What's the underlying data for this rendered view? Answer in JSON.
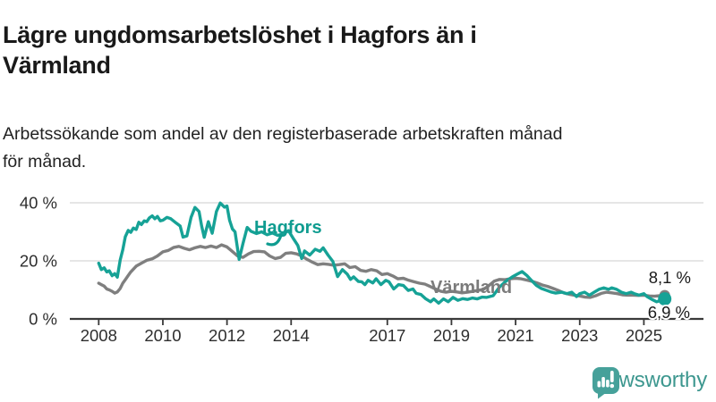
{
  "header": {
    "title_lines": [
      "Lägre ungdomsarbetslöshet i Hagfors än i",
      "Värmland"
    ],
    "subtitle_lines": [
      "Arbetssökande som andel av den registerbaserade arbetskraften månad",
      "för månad."
    ]
  },
  "footer": {
    "brand": "Newsworthy",
    "brand_color": "#3d978f",
    "logo_color": "#46a19a"
  },
  "colors": {
    "hagfors": "#16a296",
    "varmland": "#7f7f7f",
    "hagfors_label": "#0f9c90",
    "varmland_label": "#7b7b7b",
    "grid": "#dddddd",
    "axis": "#3a3a3a",
    "text": "#191919"
  },
  "chart_data": {
    "type": "line",
    "title": "Lägre ungdomsarbetslöshet i Hagfors än i Värmland",
    "subtitle": "Arbetssökande som andel av den registerbaserade arbetskraften månad för månad.",
    "unit": "%",
    "xlim": [
      2007.1,
      2026.1
    ],
    "ylim": [
      0,
      42
    ],
    "grid_values": [
      40,
      20
    ],
    "y_ticks": [
      {
        "value": 40,
        "label": "40 %"
      },
      {
        "value": 20,
        "label": "20 %"
      },
      {
        "value": 0,
        "label": "0 %"
      }
    ],
    "x_ticks": [
      {
        "value": 2008,
        "label": "2008"
      },
      {
        "value": 2010,
        "label": "2010"
      },
      {
        "value": 2012,
        "label": "2012"
      },
      {
        "value": 2014,
        "label": "2014"
      },
      {
        "value": 2017,
        "label": "2017"
      },
      {
        "value": 2019,
        "label": "2019"
      },
      {
        "value": 2021,
        "label": "2021"
      },
      {
        "value": 2023,
        "label": "2023"
      },
      {
        "value": 2025,
        "label": "2025"
      }
    ],
    "annotations": {
      "hagfors": "Hagfors",
      "varmland": "Värmland"
    },
    "series": [
      {
        "name": "Värmland",
        "color": "#7f7f7f",
        "end_label": "8,1 %",
        "end_value": 8.1,
        "dot_radius": 6,
        "points": [
          [
            2008.0,
            12.3
          ],
          [
            2008.08,
            11.8
          ],
          [
            2008.17,
            11.3
          ],
          [
            2008.25,
            10.3
          ],
          [
            2008.33,
            10.0
          ],
          [
            2008.42,
            9.5
          ],
          [
            2008.5,
            8.9
          ],
          [
            2008.58,
            9.3
          ],
          [
            2008.67,
            10.5
          ],
          [
            2008.75,
            12.3
          ],
          [
            2008.83,
            13.5
          ],
          [
            2008.92,
            15.0
          ],
          [
            2009.0,
            16.2
          ],
          [
            2009.17,
            18.2
          ],
          [
            2009.33,
            19.2
          ],
          [
            2009.5,
            20.2
          ],
          [
            2009.67,
            20.7
          ],
          [
            2009.83,
            21.7
          ],
          [
            2010.0,
            23.1
          ],
          [
            2010.17,
            23.6
          ],
          [
            2010.33,
            24.6
          ],
          [
            2010.5,
            25.0
          ],
          [
            2010.67,
            24.3
          ],
          [
            2010.83,
            23.8
          ],
          [
            2011.0,
            24.5
          ],
          [
            2011.17,
            25.0
          ],
          [
            2011.33,
            24.6
          ],
          [
            2011.5,
            25.1
          ],
          [
            2011.67,
            24.6
          ],
          [
            2011.83,
            25.5
          ],
          [
            2012.0,
            24.8
          ],
          [
            2012.17,
            23.2
          ],
          [
            2012.33,
            21.7
          ],
          [
            2012.5,
            21.2
          ],
          [
            2012.67,
            22.4
          ],
          [
            2012.83,
            23.2
          ],
          [
            2013.0,
            23.3
          ],
          [
            2013.17,
            23.1
          ],
          [
            2013.33,
            21.7
          ],
          [
            2013.5,
            20.8
          ],
          [
            2013.67,
            21.2
          ],
          [
            2013.83,
            22.6
          ],
          [
            2014.0,
            22.8
          ],
          [
            2014.17,
            22.4
          ],
          [
            2014.33,
            21.7
          ],
          [
            2014.5,
            20.5
          ],
          [
            2014.67,
            19.5
          ],
          [
            2014.83,
            18.7
          ],
          [
            2015.0,
            19.0
          ],
          [
            2015.17,
            18.8
          ],
          [
            2015.33,
            18.5
          ],
          [
            2015.5,
            18.7
          ],
          [
            2015.67,
            19.0
          ],
          [
            2015.83,
            17.7
          ],
          [
            2016.0,
            18.0
          ],
          [
            2016.17,
            16.7
          ],
          [
            2016.33,
            16.4
          ],
          [
            2016.5,
            17.0
          ],
          [
            2016.67,
            16.6
          ],
          [
            2016.83,
            15.3
          ],
          [
            2017.0,
            15.6
          ],
          [
            2017.17,
            14.8
          ],
          [
            2017.33,
            13.8
          ],
          [
            2017.5,
            14.0
          ],
          [
            2017.67,
            13.3
          ],
          [
            2017.83,
            12.8
          ],
          [
            2018.0,
            12.3
          ],
          [
            2018.17,
            12.0
          ],
          [
            2018.33,
            11.2
          ],
          [
            2018.5,
            10.3
          ],
          [
            2018.67,
            9.5
          ],
          [
            2018.83,
            9.2
          ],
          [
            2019.0,
            9.5
          ],
          [
            2019.17,
            9.3
          ],
          [
            2019.33,
            9.0
          ],
          [
            2019.5,
            9.2
          ],
          [
            2019.67,
            9.5
          ],
          [
            2019.83,
            9.8
          ],
          [
            2020.0,
            10.2
          ],
          [
            2020.17,
            11.5
          ],
          [
            2020.33,
            13.0
          ],
          [
            2020.5,
            13.6
          ],
          [
            2020.67,
            13.5
          ],
          [
            2020.83,
            13.8
          ],
          [
            2021.0,
            14.0
          ],
          [
            2021.17,
            13.8
          ],
          [
            2021.33,
            13.4
          ],
          [
            2021.5,
            13.0
          ],
          [
            2021.67,
            12.4
          ],
          [
            2021.83,
            11.7
          ],
          [
            2022.0,
            11.2
          ],
          [
            2022.17,
            10.5
          ],
          [
            2022.33,
            9.8
          ],
          [
            2022.5,
            9.0
          ],
          [
            2022.67,
            8.5
          ],
          [
            2022.83,
            8.2
          ],
          [
            2023.0,
            7.9
          ],
          [
            2023.17,
            7.5
          ],
          [
            2023.33,
            7.4
          ],
          [
            2023.5,
            8.0
          ],
          [
            2023.67,
            8.8
          ],
          [
            2023.83,
            9.2
          ],
          [
            2024.0,
            9.0
          ],
          [
            2024.17,
            8.7
          ],
          [
            2024.33,
            8.3
          ],
          [
            2024.5,
            8.2
          ],
          [
            2024.67,
            8.2
          ],
          [
            2024.83,
            8.1
          ],
          [
            2025.0,
            8.2
          ],
          [
            2025.17,
            7.9
          ],
          [
            2025.33,
            7.8
          ],
          [
            2025.5,
            8.0
          ],
          [
            2025.65,
            8.1
          ]
        ]
      },
      {
        "name": "Hagfors",
        "color": "#16a296",
        "end_label": "6,9 %",
        "end_value": 6.9,
        "dot_radius": 7.5,
        "points": [
          [
            2008.0,
            19.2
          ],
          [
            2008.08,
            17.0
          ],
          [
            2008.17,
            17.6
          ],
          [
            2008.25,
            16.2
          ],
          [
            2008.33,
            16.6
          ],
          [
            2008.42,
            14.9
          ],
          [
            2008.5,
            15.6
          ],
          [
            2008.58,
            14.4
          ],
          [
            2008.67,
            20.3
          ],
          [
            2008.75,
            23.8
          ],
          [
            2008.83,
            28.3
          ],
          [
            2008.92,
            30.5
          ],
          [
            2009.0,
            29.8
          ],
          [
            2009.08,
            31.3
          ],
          [
            2009.17,
            30.8
          ],
          [
            2009.25,
            33.3
          ],
          [
            2009.33,
            32.5
          ],
          [
            2009.42,
            33.8
          ],
          [
            2009.5,
            33.5
          ],
          [
            2009.58,
            34.8
          ],
          [
            2009.67,
            35.5
          ],
          [
            2009.75,
            34.5
          ],
          [
            2009.83,
            35.3
          ],
          [
            2009.92,
            33.8
          ],
          [
            2010.0,
            34.0
          ],
          [
            2010.13,
            35.0
          ],
          [
            2010.25,
            34.5
          ],
          [
            2010.42,
            33.0
          ],
          [
            2010.54,
            32.0
          ],
          [
            2010.63,
            28.2
          ],
          [
            2010.75,
            28.6
          ],
          [
            2010.88,
            35.0
          ],
          [
            2011.0,
            38.4
          ],
          [
            2011.13,
            37.0
          ],
          [
            2011.21,
            32.0
          ],
          [
            2011.29,
            28.1
          ],
          [
            2011.42,
            33.5
          ],
          [
            2011.54,
            29.5
          ],
          [
            2011.67,
            37.0
          ],
          [
            2011.79,
            39.9
          ],
          [
            2011.92,
            38.5
          ],
          [
            2012.0,
            38.9
          ],
          [
            2012.08,
            34.0
          ],
          [
            2012.17,
            31.0
          ],
          [
            2012.25,
            30.0
          ],
          [
            2012.38,
            20.5
          ],
          [
            2012.5,
            26.0
          ],
          [
            2012.63,
            31.5
          ],
          [
            2012.75,
            30.2
          ],
          [
            2012.92,
            29.4
          ],
          [
            2013.08,
            30.0
          ],
          [
            2013.25,
            29.0
          ],
          [
            2013.42,
            29.6
          ],
          [
            2013.58,
            28.8
          ],
          [
            2013.75,
            29.2
          ],
          [
            2013.92,
            30.4
          ],
          [
            2014.08,
            27.5
          ],
          [
            2014.21,
            25.3
          ],
          [
            2014.33,
            20.8
          ],
          [
            2014.42,
            23.4
          ],
          [
            2014.58,
            22.0
          ],
          [
            2014.75,
            24.0
          ],
          [
            2014.9,
            23.3
          ],
          [
            2015.0,
            24.5
          ],
          [
            2015.15,
            22.0
          ],
          [
            2015.3,
            19.8
          ],
          [
            2015.45,
            14.6
          ],
          [
            2015.6,
            17.0
          ],
          [
            2015.75,
            15.4
          ],
          [
            2015.85,
            13.6
          ],
          [
            2015.95,
            14.5
          ],
          [
            2016.1,
            12.9
          ],
          [
            2016.2,
            12.8
          ],
          [
            2016.3,
            11.8
          ],
          [
            2016.4,
            13.3
          ],
          [
            2016.55,
            12.4
          ],
          [
            2016.65,
            13.8
          ],
          [
            2016.8,
            11.8
          ],
          [
            2016.95,
            13.3
          ],
          [
            2017.05,
            12.8
          ],
          [
            2017.2,
            10.3
          ],
          [
            2017.35,
            11.8
          ],
          [
            2017.5,
            11.5
          ],
          [
            2017.65,
            9.8
          ],
          [
            2017.8,
            10.3
          ],
          [
            2017.9,
            8.8
          ],
          [
            2018.05,
            8.4
          ],
          [
            2018.2,
            6.9
          ],
          [
            2018.35,
            5.9
          ],
          [
            2018.45,
            6.9
          ],
          [
            2018.6,
            5.4
          ],
          [
            2018.75,
            6.9
          ],
          [
            2018.9,
            5.9
          ],
          [
            2019.05,
            7.4
          ],
          [
            2019.2,
            6.4
          ],
          [
            2019.35,
            7.0
          ],
          [
            2019.5,
            6.7
          ],
          [
            2019.65,
            7.2
          ],
          [
            2019.8,
            6.9
          ],
          [
            2019.95,
            7.5
          ],
          [
            2020.1,
            7.4
          ],
          [
            2020.3,
            8.0
          ],
          [
            2020.5,
            11.0
          ],
          [
            2020.7,
            13.0
          ],
          [
            2020.9,
            14.5
          ],
          [
            2021.05,
            15.4
          ],
          [
            2021.2,
            16.3
          ],
          [
            2021.35,
            15.0
          ],
          [
            2021.5,
            13.2
          ],
          [
            2021.65,
            11.5
          ],
          [
            2021.8,
            10.5
          ],
          [
            2021.95,
            9.9
          ],
          [
            2022.1,
            9.3
          ],
          [
            2022.25,
            8.9
          ],
          [
            2022.45,
            9.2
          ],
          [
            2022.6,
            8.7
          ],
          [
            2022.75,
            9.2
          ],
          [
            2022.9,
            7.7
          ],
          [
            2023.0,
            8.7
          ],
          [
            2023.15,
            9.2
          ],
          [
            2023.3,
            8.2
          ],
          [
            2023.45,
            9.2
          ],
          [
            2023.6,
            10.2
          ],
          [
            2023.75,
            10.7
          ],
          [
            2023.9,
            10.2
          ],
          [
            2024.0,
            10.7
          ],
          [
            2024.15,
            10.2
          ],
          [
            2024.3,
            9.2
          ],
          [
            2024.45,
            8.7
          ],
          [
            2024.6,
            9.2
          ],
          [
            2024.7,
            8.7
          ],
          [
            2024.85,
            8.2
          ],
          [
            2025.0,
            8.7
          ],
          [
            2025.1,
            7.7
          ],
          [
            2025.25,
            6.7
          ],
          [
            2025.4,
            5.9
          ],
          [
            2025.5,
            6.3
          ],
          [
            2025.65,
            6.9
          ]
        ]
      }
    ]
  }
}
